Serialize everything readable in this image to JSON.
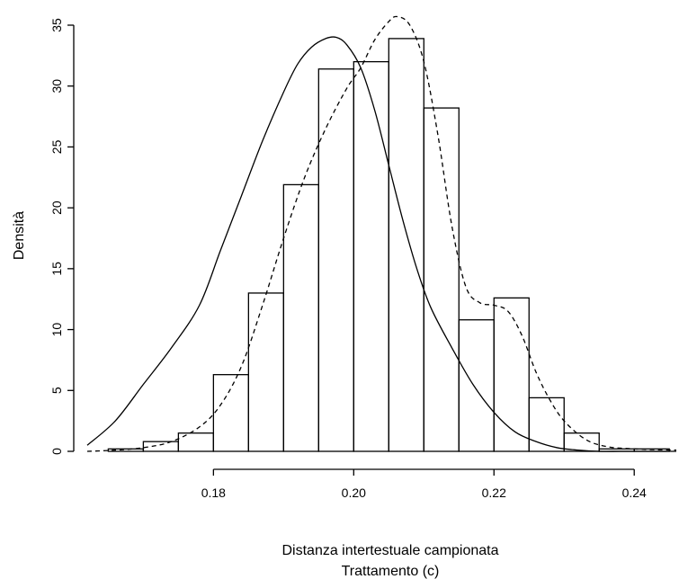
{
  "chart_data": {
    "type": "histogram",
    "xlabel": "Distanza intertestuale campionata",
    "xlabel_line2": "Trattamento (c)",
    "ylabel": "Densità",
    "xlim": [
      0.162,
      0.246
    ],
    "ylim": [
      0,
      35
    ],
    "x_ticks": [
      0.18,
      0.2,
      0.22,
      0.24
    ],
    "x_tick_labels": [
      "0.18",
      "0.20",
      "0.22",
      "0.24"
    ],
    "y_ticks": [
      0,
      5,
      10,
      15,
      20,
      25,
      30,
      35
    ],
    "y_tick_labels": [
      "0",
      "5",
      "10",
      "15",
      "20",
      "25",
      "30",
      "35"
    ],
    "bins": [
      {
        "start": 0.165,
        "end": 0.17,
        "density": 0.2
      },
      {
        "start": 0.17,
        "end": 0.175,
        "density": 0.8
      },
      {
        "start": 0.175,
        "end": 0.18,
        "density": 1.5
      },
      {
        "start": 0.18,
        "end": 0.185,
        "density": 6.3
      },
      {
        "start": 0.185,
        "end": 0.19,
        "density": 13.0
      },
      {
        "start": 0.19,
        "end": 0.195,
        "density": 21.9
      },
      {
        "start": 0.195,
        "end": 0.2,
        "density": 31.4
      },
      {
        "start": 0.2,
        "end": 0.205,
        "density": 32.0
      },
      {
        "start": 0.205,
        "end": 0.21,
        "density": 33.9
      },
      {
        "start": 0.21,
        "end": 0.215,
        "density": 28.2
      },
      {
        "start": 0.215,
        "end": 0.22,
        "density": 10.8
      },
      {
        "start": 0.22,
        "end": 0.225,
        "density": 12.6
      },
      {
        "start": 0.225,
        "end": 0.23,
        "density": 4.4
      },
      {
        "start": 0.23,
        "end": 0.235,
        "density": 1.5
      },
      {
        "start": 0.235,
        "end": 0.24,
        "density": 0.2
      },
      {
        "start": 0.24,
        "end": 0.245,
        "density": 0.2
      }
    ],
    "series": [
      {
        "style": "solid",
        "x": [
          0.162,
          0.166,
          0.17,
          0.174,
          0.178,
          0.181,
          0.184,
          0.187,
          0.19,
          0.192,
          0.194,
          0.196,
          0.1975,
          0.199,
          0.201,
          0.203,
          0.205,
          0.207,
          0.209,
          0.211,
          0.214,
          0.217,
          0.22,
          0.223,
          0.226,
          0.229,
          0.232,
          0.235,
          0.238,
          0.241,
          0.244,
          0.246
        ],
        "y": [
          0.5,
          2.5,
          5.5,
          8.5,
          12.0,
          16.5,
          21.0,
          25.5,
          29.5,
          31.8,
          33.2,
          33.9,
          34.0,
          33.4,
          31.5,
          28.0,
          23.5,
          19.0,
          15.0,
          11.8,
          8.5,
          5.5,
          3.2,
          1.6,
          0.8,
          0.3,
          0.1,
          0.0,
          0.0,
          0.0,
          0.0,
          0.0
        ]
      },
      {
        "style": "dashed",
        "x": [
          0.162,
          0.166,
          0.17,
          0.174,
          0.178,
          0.181,
          0.184,
          0.187,
          0.19,
          0.193,
          0.196,
          0.199,
          0.201,
          0.203,
          0.205,
          0.2062,
          0.208,
          0.21,
          0.212,
          0.214,
          0.216,
          0.218,
          0.22,
          0.222,
          0.224,
          0.226,
          0.228,
          0.23,
          0.233,
          0.236,
          0.24,
          0.246
        ],
        "y": [
          0.0,
          0.1,
          0.3,
          0.8,
          2.0,
          3.8,
          7.0,
          12.0,
          17.5,
          22.5,
          26.5,
          29.8,
          31.5,
          33.8,
          35.3,
          35.7,
          35.0,
          32.0,
          26.0,
          18.5,
          13.5,
          12.2,
          12.0,
          11.5,
          9.5,
          6.5,
          4.2,
          2.5,
          1.0,
          0.4,
          0.2,
          0.1
        ]
      }
    ],
    "grid": false,
    "legend": "none"
  }
}
